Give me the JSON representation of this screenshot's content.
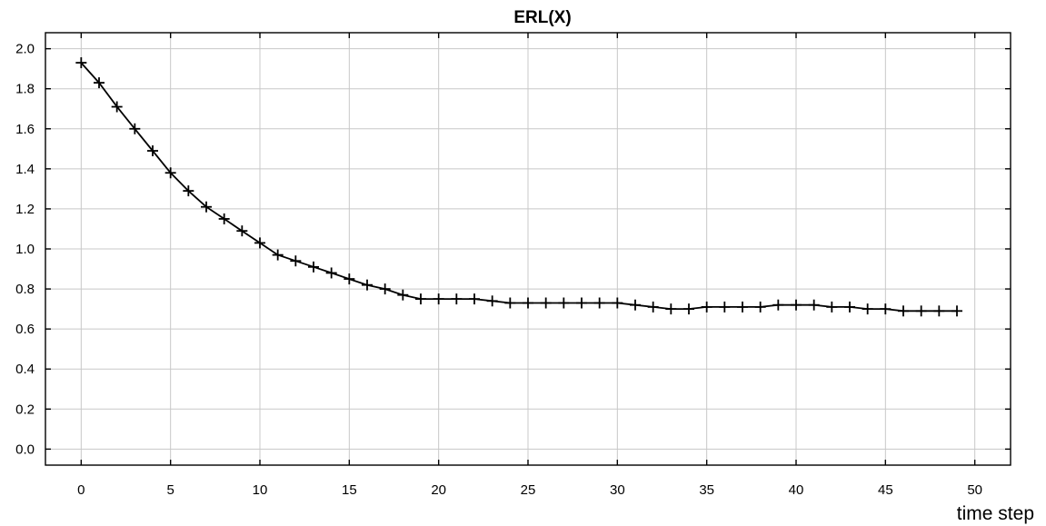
{
  "chart_data": {
    "type": "line",
    "title": "ERL(X)",
    "xlabel": "time step",
    "ylabel": "",
    "xlim": [
      -2,
      52
    ],
    "ylim": [
      -0.08,
      2.08
    ],
    "xticks": [
      0,
      5,
      10,
      15,
      20,
      25,
      30,
      35,
      40,
      45,
      50
    ],
    "yticks": [
      0.0,
      0.2,
      0.4,
      0.6,
      0.8,
      1.0,
      1.2,
      1.4,
      1.6,
      1.8,
      2.0
    ],
    "ytick_labels": [
      "0.0",
      "0.2",
      "0.4",
      "0.6",
      "0.8",
      "1.0",
      "1.2",
      "1.4",
      "1.6",
      "1.8",
      "2.0"
    ],
    "grid": true,
    "marker": "plus",
    "line_color": "#000000",
    "grid_color": "#c8c8c8",
    "series": [
      {
        "x": [
          0,
          1,
          2,
          3,
          4,
          5,
          6,
          7,
          8,
          9,
          10,
          11,
          12,
          13,
          14,
          15,
          16,
          17,
          18,
          19,
          20,
          21,
          22,
          23,
          24,
          25,
          26,
          27,
          28,
          29,
          30,
          31,
          32,
          33,
          34,
          35,
          36,
          37,
          38,
          39,
          40,
          41,
          42,
          43,
          44,
          45,
          46,
          47,
          48,
          49
        ],
        "values": [
          1.93,
          1.83,
          1.71,
          1.6,
          1.49,
          1.38,
          1.29,
          1.21,
          1.15,
          1.09,
          1.03,
          0.97,
          0.94,
          0.91,
          0.88,
          0.85,
          0.82,
          0.8,
          0.77,
          0.75,
          0.75,
          0.75,
          0.75,
          0.74,
          0.73,
          0.73,
          0.73,
          0.73,
          0.73,
          0.73,
          0.73,
          0.72,
          0.71,
          0.7,
          0.7,
          0.71,
          0.71,
          0.71,
          0.71,
          0.72,
          0.72,
          0.72,
          0.71,
          0.71,
          0.7,
          0.7,
          0.69,
          0.69,
          0.69,
          0.69
        ]
      }
    ]
  }
}
